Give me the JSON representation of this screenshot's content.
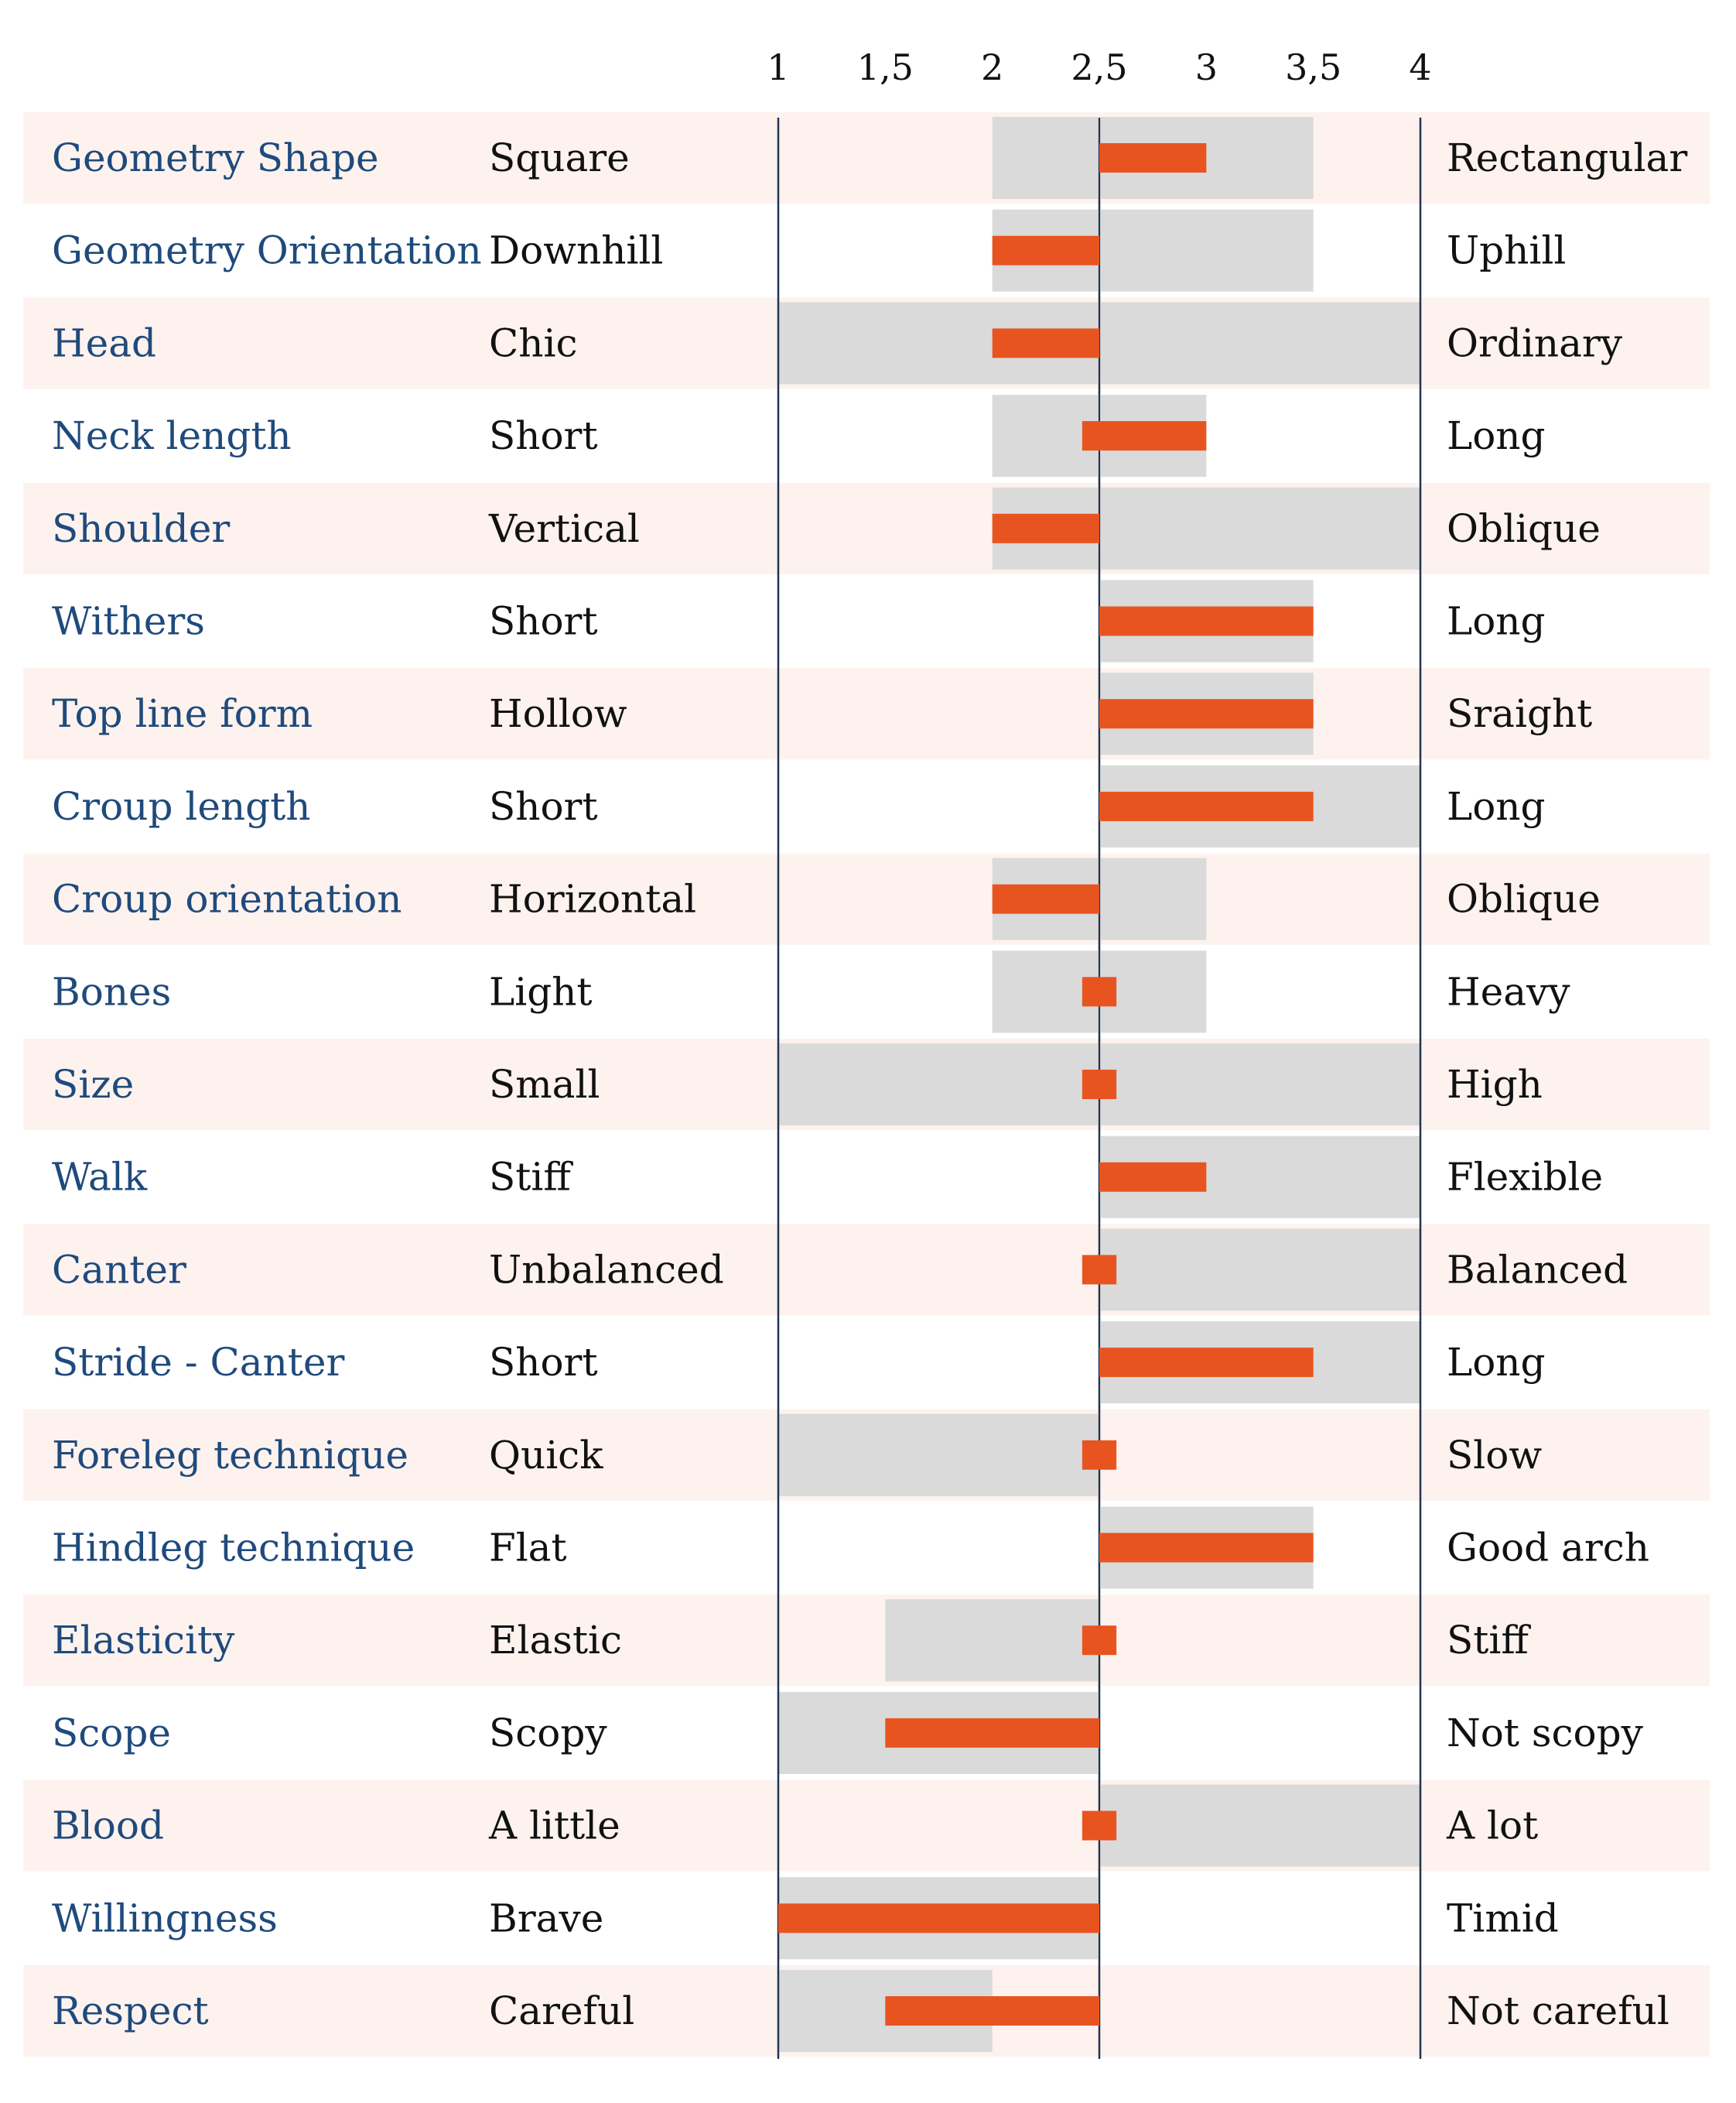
{
  "colors": {
    "row_band": "#fdf2ee",
    "range_bar": "#dadada",
    "value_bar": "#e85420",
    "axis_line": "#24344f",
    "trait_text": "#1f4a7c",
    "pole_text": "#111111"
  },
  "chart_data": {
    "type": "bar",
    "title": "",
    "xlim": [
      1,
      4
    ],
    "center": 2.5,
    "ticks": [
      1,
      1.5,
      2,
      2.5,
      3,
      3.5,
      4
    ],
    "tick_labels": [
      "1",
      "1,5",
      "2",
      "2,5",
      "3",
      "3,5",
      "4"
    ],
    "rows": [
      {
        "trait": "Geometry Shape",
        "low": "Square",
        "high": "Rectangular",
        "range": [
          2,
          3.5
        ],
        "value": 3
      },
      {
        "trait": "Geometry Orientation",
        "low": "Downhill",
        "high": "Uphill",
        "range": [
          2,
          3.5
        ],
        "value": 2
      },
      {
        "trait": "Head",
        "low": "Chic",
        "high": "Ordinary",
        "range": [
          1,
          4
        ],
        "value": 2
      },
      {
        "trait": "Neck length",
        "low": "Short",
        "high": "Long",
        "range": [
          2,
          3
        ],
        "value": 3,
        "from": 2.42
      },
      {
        "trait": "Shoulder",
        "low": "Vertical",
        "high": "Oblique",
        "range": [
          2,
          4
        ],
        "value": 2
      },
      {
        "trait": "Withers",
        "low": "Short",
        "high": "Long",
        "range": [
          2.5,
          3.5
        ],
        "value": 3.5
      },
      {
        "trait": "Top line form",
        "low": "Hollow",
        "high": "Sraight",
        "range": [
          2.5,
          3.5
        ],
        "value": 3.5
      },
      {
        "trait": "Croup length",
        "low": "Short",
        "high": "Long",
        "range": [
          2.5,
          4
        ],
        "value": 3.5
      },
      {
        "trait": "Croup orientation",
        "low": "Horizontal",
        "high": "Oblique",
        "range": [
          2,
          3
        ],
        "value": 2
      },
      {
        "trait": "Bones",
        "low": "Light",
        "high": "Heavy",
        "range": [
          2,
          3
        ],
        "value": 2.5
      },
      {
        "trait": "Size",
        "low": "Small",
        "high": "High",
        "range": [
          1,
          4
        ],
        "value": 2.5
      },
      {
        "trait": "Walk",
        "low": "Stiff",
        "high": "Flexible",
        "range": [
          2.5,
          4
        ],
        "value": 3
      },
      {
        "trait": "Canter",
        "low": "Unbalanced",
        "high": "Balanced",
        "range": [
          2.5,
          4
        ],
        "value": 2.5
      },
      {
        "trait": "Stride - Canter",
        "low": "Short",
        "high": "Long",
        "range": [
          2.5,
          4
        ],
        "value": 3.5
      },
      {
        "trait": "Foreleg technique",
        "low": "Quick",
        "high": "Slow",
        "range": [
          1,
          2.5
        ],
        "value": 2.5
      },
      {
        "trait": "Hindleg technique",
        "low": "Flat",
        "high": "Good arch",
        "range": [
          2.5,
          3.5
        ],
        "value": 3.5
      },
      {
        "trait": "Elasticity",
        "low": "Elastic",
        "high": "Stiff",
        "range": [
          1.5,
          2.5
        ],
        "value": 2.5
      },
      {
        "trait": "Scope",
        "low": "Scopy",
        "high": "Not scopy",
        "range": [
          1,
          2.5
        ],
        "value": 1.5
      },
      {
        "trait": "Blood",
        "low": "A little",
        "high": "A lot",
        "range": [
          2.5,
          4
        ],
        "value": 2.5
      },
      {
        "trait": "Willingness",
        "low": "Brave",
        "high": "Timid",
        "range": [
          1,
          2.5
        ],
        "value": 1
      },
      {
        "trait": "Respect",
        "low": "Careful",
        "high": "Not careful",
        "range": [
          1,
          2
        ],
        "value": 1.5
      }
    ]
  }
}
